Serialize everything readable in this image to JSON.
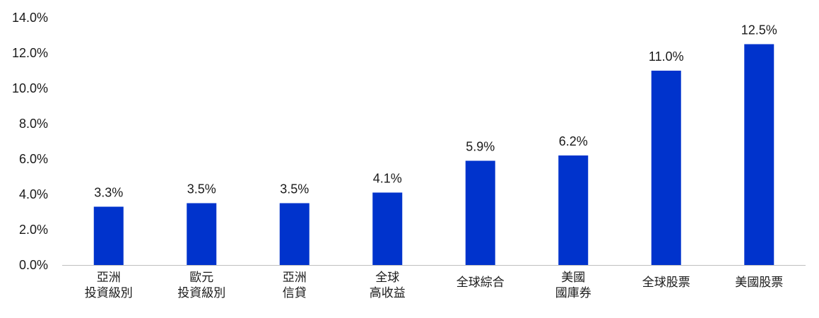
{
  "colors": {
    "bar": "#0033cc",
    "text": "#1a1a1a",
    "axis": "#bfbfbf"
  },
  "chart_data": {
    "type": "bar",
    "title": "",
    "xlabel": "",
    "ylabel": "",
    "ylim": [
      0,
      14
    ],
    "y_ticks": [
      "0.0%",
      "2.0%",
      "4.0%",
      "6.0%",
      "8.0%",
      "10.0%",
      "12.0%",
      "14.0%"
    ],
    "y_tick_values": [
      0,
      2,
      4,
      6,
      8,
      10,
      12,
      14
    ],
    "grid": false,
    "categories": [
      "亞洲\n投資級別",
      "歐元\n投資級別",
      "亞洲\n信貸",
      "全球\n高收益",
      "全球綜合",
      "美國\n國庫券",
      "全球股票",
      "美國股票"
    ],
    "values": [
      3.3,
      3.5,
      3.5,
      4.1,
      5.9,
      6.2,
      11.0,
      12.5
    ],
    "data_labels": [
      "3.3%",
      "3.5%",
      "3.5%",
      "4.1%",
      "5.9%",
      "6.2%",
      "11.0%",
      "12.5%"
    ]
  }
}
